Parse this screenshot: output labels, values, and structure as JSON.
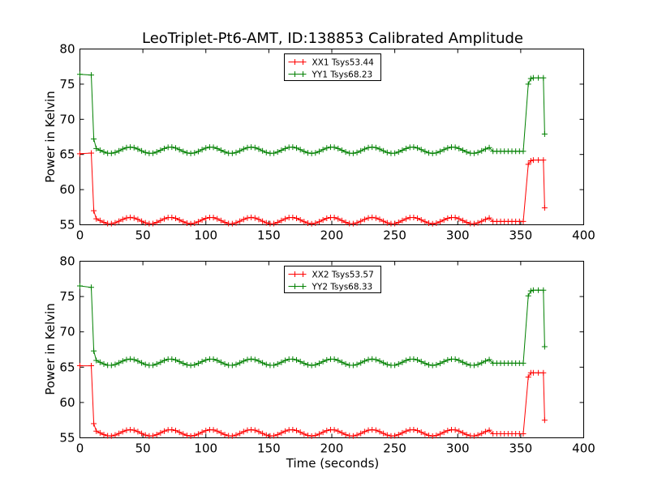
{
  "chart_data": {
    "title": "LeoTriplet-Pt6-AMT, ID:138853 Calibrated Amplitude",
    "xlabel": "Time (seconds)",
    "colors": {
      "xx": "#ff0000",
      "yy": "#008000"
    },
    "legend_position": "top-center",
    "grid": false,
    "panels": [
      {
        "type": "line",
        "ylabel": "Power in Kelvin",
        "xlabel": "",
        "xlim": [
          0,
          400
        ],
        "ylim": [
          55,
          80
        ],
        "xticks": [
          "0",
          "50",
          "100",
          "150",
          "200",
          "250",
          "300",
          "350",
          "400"
        ],
        "yticks": [
          "55",
          "60",
          "65",
          "70",
          "75",
          "80"
        ],
        "series": [
          {
            "name": "XX1 Tsys53.44",
            "color_key": "xx",
            "base": 55.6,
            "amp": 0.45,
            "start_plateau": [
              [
                0,
                65.1
              ],
              [
                9,
                65.2
              ]
            ],
            "drop_end": 11,
            "drop_value": 57.0,
            "osc_start": 13,
            "osc_end": 354,
            "end_points": [
              [
                356,
                63.6
              ],
              [
                358,
                64.1
              ],
              [
                360,
                64.2
              ],
              [
                364,
                64.2
              ],
              [
                368,
                64.2
              ],
              [
                369,
                57.4
              ]
            ]
          },
          {
            "name": "YY1 Tsys68.23",
            "color_key": "yy",
            "base": 65.6,
            "amp": 0.45,
            "start_plateau": [
              [
                0,
                76.4
              ],
              [
                9,
                76.3
              ]
            ],
            "drop_end": 11,
            "drop_value": 67.2,
            "osc_start": 13,
            "osc_end": 354,
            "end_points": [
              [
                356,
                75.0
              ],
              [
                358,
                75.8
              ],
              [
                360,
                75.9
              ],
              [
                364,
                75.9
              ],
              [
                368,
                75.9
              ],
              [
                369,
                67.9
              ]
            ]
          }
        ]
      },
      {
        "type": "line",
        "ylabel": "Power in Kelvin",
        "xlabel": "Time (seconds)",
        "xlim": [
          0,
          400
        ],
        "ylim": [
          55,
          80
        ],
        "xticks": [
          "0",
          "50",
          "100",
          "150",
          "200",
          "250",
          "300",
          "350",
          "400"
        ],
        "yticks": [
          "55",
          "60",
          "65",
          "70",
          "75",
          "80"
        ],
        "series": [
          {
            "name": "XX2 Tsys53.57",
            "color_key": "xx",
            "base": 55.7,
            "amp": 0.45,
            "start_plateau": [
              [
                0,
                65.2
              ],
              [
                9,
                65.2
              ]
            ],
            "drop_end": 11,
            "drop_value": 57.0,
            "osc_start": 13,
            "osc_end": 354,
            "end_points": [
              [
                356,
                63.6
              ],
              [
                358,
                64.2
              ],
              [
                360,
                64.2
              ],
              [
                364,
                64.2
              ],
              [
                368,
                64.2
              ],
              [
                369,
                57.5
              ]
            ]
          },
          {
            "name": "YY2 Tsys68.33",
            "color_key": "yy",
            "base": 65.7,
            "amp": 0.45,
            "start_plateau": [
              [
                0,
                76.5
              ],
              [
                9,
                76.3
              ]
            ],
            "drop_end": 11,
            "drop_value": 67.3,
            "osc_start": 13,
            "osc_end": 354,
            "end_points": [
              [
                356,
                75.1
              ],
              [
                358,
                75.8
              ],
              [
                360,
                75.9
              ],
              [
                364,
                75.9
              ],
              [
                368,
                75.9
              ],
              [
                369,
                67.9
              ]
            ]
          }
        ]
      }
    ]
  }
}
